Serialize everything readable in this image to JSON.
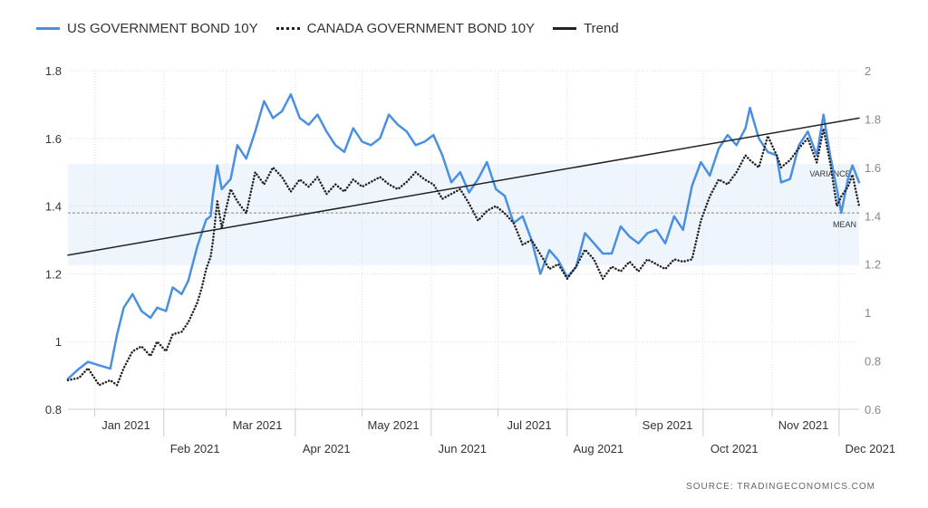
{
  "source": "SOURCE:  TRADINGECONOMICS.COM",
  "chart_data": {
    "type": "line",
    "title": "",
    "xlabel": "",
    "ylabel": "",
    "legend_position": "top-left",
    "grid": true,
    "y_left": {
      "lim": [
        0.8,
        1.8
      ],
      "ticks": [
        "0.8",
        "1",
        "1.2",
        "1.4",
        "1.6",
        "1.8"
      ]
    },
    "y_right": {
      "lim": [
        0.6,
        2.0
      ],
      "ticks": [
        "0.6",
        "0.8",
        "1",
        "1.2",
        "1.4",
        "1.6",
        "1.8",
        "2"
      ]
    },
    "x_ticks": [
      "Jan 2021",
      "Feb 2021",
      "Mar 2021",
      "Apr 2021",
      "May 2021",
      "Jun 2021",
      "Jul 2021",
      "Aug 2021",
      "Sep 2021",
      "Oct 2021",
      "Nov 2021",
      "Dec 2021"
    ],
    "x_ticks_row": [
      "top",
      "bottom",
      "top",
      "bottom",
      "top",
      "bottom",
      "top",
      "bottom",
      "top",
      "bottom",
      "top",
      "bottom"
    ],
    "x_range": [
      "2020-12-20",
      "2021-12-10"
    ],
    "series": [
      {
        "name": "US GOVERNMENT BOND 10Y",
        "axis": "left",
        "color": "#4a90e2",
        "style": "solid",
        "points": [
          [
            "2020-12-20",
            0.89
          ],
          [
            "2020-12-25",
            0.92
          ],
          [
            "2020-12-29",
            0.94
          ],
          [
            "2021-01-03",
            0.93
          ],
          [
            "2021-01-08",
            0.92
          ],
          [
            "2021-01-11",
            1.02
          ],
          [
            "2021-01-14",
            1.1
          ],
          [
            "2021-01-18",
            1.14
          ],
          [
            "2021-01-22",
            1.09
          ],
          [
            "2021-01-26",
            1.07
          ],
          [
            "2021-01-29",
            1.1
          ],
          [
            "2021-02-02",
            1.09
          ],
          [
            "2021-02-05",
            1.16
          ],
          [
            "2021-02-09",
            1.14
          ],
          [
            "2021-02-12",
            1.18
          ],
          [
            "2021-02-16",
            1.28
          ],
          [
            "2021-02-18",
            1.32
          ],
          [
            "2021-02-20",
            1.36
          ],
          [
            "2021-02-22",
            1.37
          ],
          [
            "2021-02-23",
            1.43
          ],
          [
            "2021-02-25",
            1.52
          ],
          [
            "2021-02-27",
            1.45
          ],
          [
            "2021-03-03",
            1.48
          ],
          [
            "2021-03-06",
            1.58
          ],
          [
            "2021-03-10",
            1.54
          ],
          [
            "2021-03-14",
            1.62
          ],
          [
            "2021-03-18",
            1.71
          ],
          [
            "2021-03-22",
            1.66
          ],
          [
            "2021-03-26",
            1.68
          ],
          [
            "2021-03-30",
            1.73
          ],
          [
            "2021-04-03",
            1.66
          ],
          [
            "2021-04-07",
            1.64
          ],
          [
            "2021-04-11",
            1.67
          ],
          [
            "2021-04-15",
            1.62
          ],
          [
            "2021-04-19",
            1.58
          ],
          [
            "2021-04-23",
            1.56
          ],
          [
            "2021-04-27",
            1.63
          ],
          [
            "2021-05-01",
            1.59
          ],
          [
            "2021-05-05",
            1.58
          ],
          [
            "2021-05-09",
            1.6
          ],
          [
            "2021-05-13",
            1.67
          ],
          [
            "2021-05-17",
            1.64
          ],
          [
            "2021-05-21",
            1.62
          ],
          [
            "2021-05-25",
            1.58
          ],
          [
            "2021-05-29",
            1.59
          ],
          [
            "2021-06-02",
            1.61
          ],
          [
            "2021-06-06",
            1.55
          ],
          [
            "2021-06-10",
            1.47
          ],
          [
            "2021-06-14",
            1.5
          ],
          [
            "2021-06-18",
            1.44
          ],
          [
            "2021-06-22",
            1.48
          ],
          [
            "2021-06-26",
            1.53
          ],
          [
            "2021-06-30",
            1.45
          ],
          [
            "2021-07-04",
            1.43
          ],
          [
            "2021-07-08",
            1.35
          ],
          [
            "2021-07-12",
            1.37
          ],
          [
            "2021-07-16",
            1.3
          ],
          [
            "2021-07-20",
            1.2
          ],
          [
            "2021-07-24",
            1.27
          ],
          [
            "2021-07-28",
            1.24
          ],
          [
            "2021-08-01",
            1.19
          ],
          [
            "2021-08-05",
            1.22
          ],
          [
            "2021-08-09",
            1.32
          ],
          [
            "2021-08-13",
            1.29
          ],
          [
            "2021-08-17",
            1.26
          ],
          [
            "2021-08-21",
            1.26
          ],
          [
            "2021-08-25",
            1.34
          ],
          [
            "2021-08-29",
            1.31
          ],
          [
            "2021-09-02",
            1.29
          ],
          [
            "2021-09-06",
            1.32
          ],
          [
            "2021-09-10",
            1.33
          ],
          [
            "2021-09-14",
            1.29
          ],
          [
            "2021-09-18",
            1.37
          ],
          [
            "2021-09-22",
            1.33
          ],
          [
            "2021-09-26",
            1.46
          ],
          [
            "2021-09-30",
            1.53
          ],
          [
            "2021-10-04",
            1.49
          ],
          [
            "2021-10-08",
            1.57
          ],
          [
            "2021-10-12",
            1.61
          ],
          [
            "2021-10-16",
            1.58
          ],
          [
            "2021-10-20",
            1.63
          ],
          [
            "2021-10-22",
            1.69
          ],
          [
            "2021-10-26",
            1.6
          ],
          [
            "2021-10-30",
            1.56
          ],
          [
            "2021-11-03",
            1.55
          ],
          [
            "2021-11-05",
            1.47
          ],
          [
            "2021-11-09",
            1.48
          ],
          [
            "2021-11-13",
            1.58
          ],
          [
            "2021-11-17",
            1.62
          ],
          [
            "2021-11-21",
            1.55
          ],
          [
            "2021-11-24",
            1.67
          ],
          [
            "2021-11-27",
            1.55
          ],
          [
            "2021-11-30",
            1.45
          ],
          [
            "2021-12-02",
            1.38
          ],
          [
            "2021-12-05",
            1.48
          ],
          [
            "2021-12-07",
            1.52
          ],
          [
            "2021-12-10",
            1.47
          ]
        ]
      },
      {
        "name": "CANADA GOVERNMENT BOND 10Y",
        "axis": "right",
        "color": "#222222",
        "style": "dotted",
        "points": [
          [
            "2020-12-20",
            0.72
          ],
          [
            "2020-12-25",
            0.73
          ],
          [
            "2020-12-29",
            0.77
          ],
          [
            "2021-01-03",
            0.7
          ],
          [
            "2021-01-08",
            0.72
          ],
          [
            "2021-01-11",
            0.7
          ],
          [
            "2021-01-14",
            0.77
          ],
          [
            "2021-01-18",
            0.84
          ],
          [
            "2021-01-22",
            0.86
          ],
          [
            "2021-01-26",
            0.82
          ],
          [
            "2021-01-29",
            0.88
          ],
          [
            "2021-02-02",
            0.84
          ],
          [
            "2021-02-05",
            0.91
          ],
          [
            "2021-02-09",
            0.92
          ],
          [
            "2021-02-12",
            0.96
          ],
          [
            "2021-02-16",
            1.04
          ],
          [
            "2021-02-18",
            1.1
          ],
          [
            "2021-02-20",
            1.18
          ],
          [
            "2021-02-22",
            1.23
          ],
          [
            "2021-02-23",
            1.29
          ],
          [
            "2021-02-25",
            1.46
          ],
          [
            "2021-02-27",
            1.35
          ],
          [
            "2021-03-03",
            1.51
          ],
          [
            "2021-03-06",
            1.46
          ],
          [
            "2021-03-10",
            1.41
          ],
          [
            "2021-03-14",
            1.58
          ],
          [
            "2021-03-18",
            1.53
          ],
          [
            "2021-03-22",
            1.6
          ],
          [
            "2021-03-26",
            1.56
          ],
          [
            "2021-03-30",
            1.5
          ],
          [
            "2021-04-03",
            1.55
          ],
          [
            "2021-04-07",
            1.52
          ],
          [
            "2021-04-11",
            1.56
          ],
          [
            "2021-04-15",
            1.49
          ],
          [
            "2021-04-19",
            1.53
          ],
          [
            "2021-04-23",
            1.5
          ],
          [
            "2021-04-27",
            1.55
          ],
          [
            "2021-05-01",
            1.52
          ],
          [
            "2021-05-05",
            1.54
          ],
          [
            "2021-05-09",
            1.56
          ],
          [
            "2021-05-13",
            1.53
          ],
          [
            "2021-05-17",
            1.51
          ],
          [
            "2021-05-21",
            1.54
          ],
          [
            "2021-05-25",
            1.58
          ],
          [
            "2021-05-29",
            1.55
          ],
          [
            "2021-06-02",
            1.53
          ],
          [
            "2021-06-06",
            1.47
          ],
          [
            "2021-06-10",
            1.49
          ],
          [
            "2021-06-14",
            1.51
          ],
          [
            "2021-06-18",
            1.45
          ],
          [
            "2021-06-22",
            1.38
          ],
          [
            "2021-06-26",
            1.42
          ],
          [
            "2021-06-30",
            1.44
          ],
          [
            "2021-07-04",
            1.41
          ],
          [
            "2021-07-08",
            1.37
          ],
          [
            "2021-07-12",
            1.28
          ],
          [
            "2021-07-16",
            1.3
          ],
          [
            "2021-07-20",
            1.24
          ],
          [
            "2021-07-24",
            1.18
          ],
          [
            "2021-07-28",
            1.2
          ],
          [
            "2021-08-01",
            1.14
          ],
          [
            "2021-08-05",
            1.19
          ],
          [
            "2021-08-09",
            1.26
          ],
          [
            "2021-08-13",
            1.22
          ],
          [
            "2021-08-17",
            1.14
          ],
          [
            "2021-08-21",
            1.19
          ],
          [
            "2021-08-25",
            1.17
          ],
          [
            "2021-08-29",
            1.21
          ],
          [
            "2021-09-02",
            1.17
          ],
          [
            "2021-09-06",
            1.22
          ],
          [
            "2021-09-10",
            1.2
          ],
          [
            "2021-09-14",
            1.18
          ],
          [
            "2021-09-18",
            1.22
          ],
          [
            "2021-09-22",
            1.21
          ],
          [
            "2021-09-26",
            1.22
          ],
          [
            "2021-09-30",
            1.38
          ],
          [
            "2021-10-04",
            1.48
          ],
          [
            "2021-10-08",
            1.55
          ],
          [
            "2021-10-12",
            1.53
          ],
          [
            "2021-10-16",
            1.58
          ],
          [
            "2021-10-20",
            1.65
          ],
          [
            "2021-10-22",
            1.63
          ],
          [
            "2021-10-26",
            1.6
          ],
          [
            "2021-10-30",
            1.73
          ],
          [
            "2021-11-03",
            1.65
          ],
          [
            "2021-11-05",
            1.6
          ],
          [
            "2021-11-09",
            1.63
          ],
          [
            "2021-11-13",
            1.68
          ],
          [
            "2021-11-17",
            1.72
          ],
          [
            "2021-11-21",
            1.62
          ],
          [
            "2021-11-24",
            1.76
          ],
          [
            "2021-11-27",
            1.62
          ],
          [
            "2021-11-30",
            1.44
          ],
          [
            "2021-12-02",
            1.48
          ],
          [
            "2021-12-05",
            1.52
          ],
          [
            "2021-12-07",
            1.57
          ],
          [
            "2021-12-10",
            1.44
          ]
        ]
      },
      {
        "name": "Trend",
        "axis": "left",
        "color": "#222222",
        "style": "solid",
        "points": [
          [
            "2020-12-20",
            1.255
          ],
          [
            "2021-12-10",
            1.66
          ]
        ]
      }
    ],
    "annotations": {
      "mean": {
        "label": "MEAN",
        "value": 1.38,
        "axis": "left"
      },
      "variance": {
        "label": "VARIANCE",
        "low": 1.225,
        "high": 1.525,
        "axis": "left"
      }
    }
  }
}
